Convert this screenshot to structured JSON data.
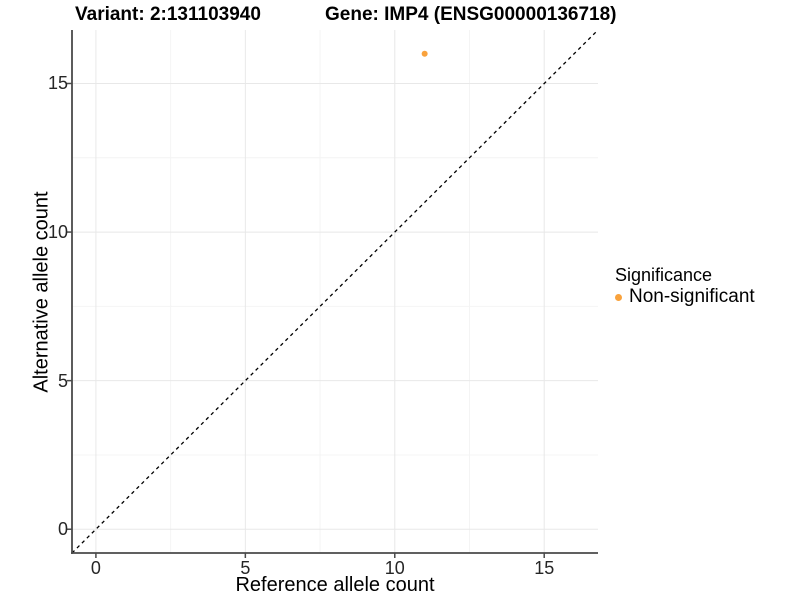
{
  "chart_data": {
    "type": "scatter",
    "titles": {
      "left": "Variant: 2:131103940",
      "right": "Gene: IMP4 (ENSG00000136718)"
    },
    "xlabel": "Reference allele count",
    "ylabel": "Alternative allele count",
    "x_ticks": [
      0,
      5,
      10,
      15
    ],
    "y_ticks": [
      0,
      5,
      10,
      15
    ],
    "x_minor_ticks": [
      2.5,
      7.5,
      12.5
    ],
    "y_minor_ticks": [
      2.5,
      7.5,
      12.5
    ],
    "xlim": [
      -0.8,
      16.8
    ],
    "ylim": [
      -0.8,
      16.8
    ],
    "grid": "major+minor",
    "identity_line": {
      "slope": 1,
      "intercept": 0,
      "style": "dashed",
      "color": "#000000"
    },
    "series": [
      {
        "name": "Non-significant",
        "color": "#F9A23C",
        "points": [
          {
            "x": 11,
            "y": 16
          }
        ]
      }
    ],
    "legend": {
      "title": "Significance",
      "position": "right",
      "items": [
        {
          "label": "Non-significant",
          "color": "#F9A23C"
        }
      ]
    },
    "colors": {
      "grid_major": "#E8E8E8",
      "grid_minor": "#F4F4F4",
      "axis": "#4A4A4A",
      "tick_label": "#262626",
      "background": "#FFFFFF"
    }
  }
}
